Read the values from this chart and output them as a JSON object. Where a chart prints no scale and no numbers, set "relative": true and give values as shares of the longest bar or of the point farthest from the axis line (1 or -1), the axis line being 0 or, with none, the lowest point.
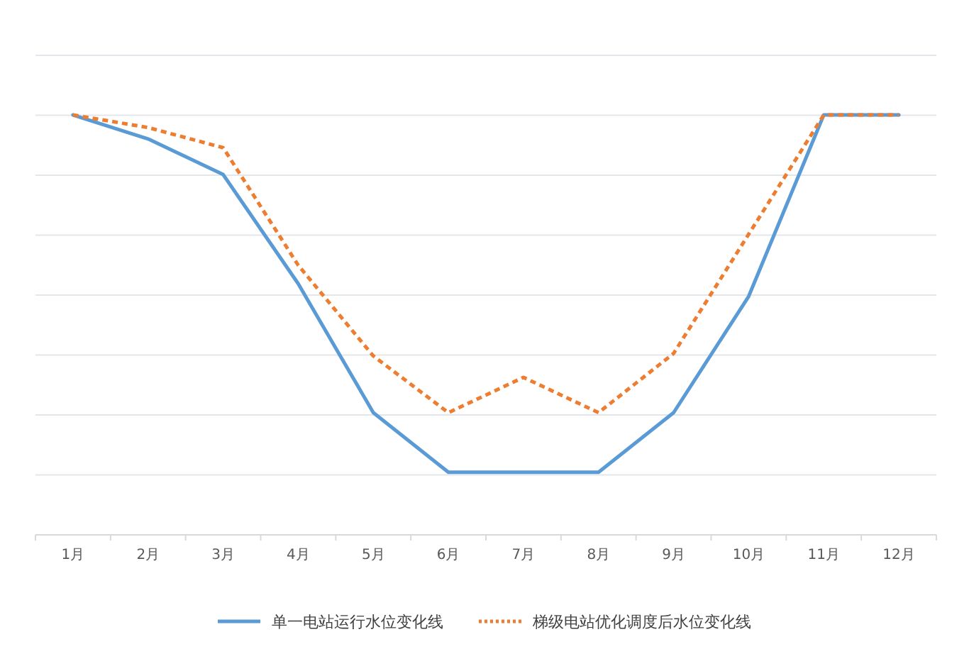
{
  "chart_data": {
    "type": "line",
    "relative": true,
    "grid": true,
    "legend": "bottom",
    "marker": "none",
    "categories": [
      "1月",
      "2月",
      "3月",
      "4月",
      "5月",
      "6月",
      "7月",
      "8月",
      "9月",
      "10月",
      "11月",
      "12月"
    ],
    "series": [
      {
        "name": "单一电站运行水位变化线",
        "color": "#5b9bd5",
        "line_style": "solid",
        "values": [
          1,
          0.943,
          0.858,
          0.598,
          0.291,
          0.149,
          0.149,
          0.149,
          0.291,
          0.568,
          1,
          1
        ]
      },
      {
        "name": "梯级电站优化调度后水位变化线",
        "color": "#ed7d31",
        "line_style": "dashed",
        "values": [
          1,
          0.97,
          0.922,
          0.642,
          0.426,
          0.291,
          0.375,
          0.291,
          0.432,
          0.716,
          1,
          1
        ]
      }
    ]
  }
}
